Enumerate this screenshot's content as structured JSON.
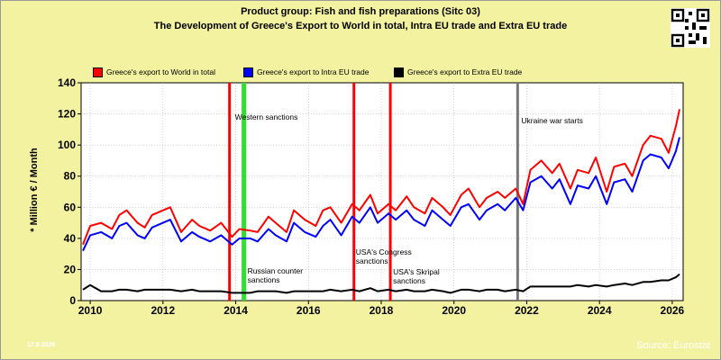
{
  "title": {
    "line1": "Product group: Fish and fish preparations (Sitc 03)",
    "line2": "The Development of Greece's Export to World in total, Intra EU trade and Extra EU trade"
  },
  "legend": [
    {
      "label": "Greece's export to World in total",
      "color": "#ff0000"
    },
    {
      "label": "Greece's export to Intra EU trade",
      "color": "#0000ff"
    },
    {
      "label": "Greece's export to Extra EU trade",
      "color": "#000000"
    }
  ],
  "footer": {
    "source": "Source: Eurostat",
    "date": "17.8.2026"
  },
  "chart_data": {
    "type": "line",
    "ylabel": "* Million € / Month",
    "xlabel": "",
    "xlim": [
      2009.75,
      2026.3
    ],
    "ylim": [
      0,
      140
    ],
    "yticks": [
      0,
      20,
      40,
      60,
      80,
      100,
      120,
      140
    ],
    "xticks": [
      2010,
      2012,
      2014,
      2016,
      2018,
      2020,
      2022,
      2024,
      2026
    ],
    "grid": true,
    "legend_position": "top",
    "series_anchor_x": [
      2009.8,
      2010.0,
      2010.3,
      2010.6,
      2010.8,
      2011.0,
      2011.3,
      2011.5,
      2011.7,
      2012.0,
      2012.2,
      2012.5,
      2012.8,
      2013.0,
      2013.3,
      2013.6,
      2013.9,
      2014.1,
      2014.4,
      2014.6,
      2014.9,
      2015.1,
      2015.4,
      2015.6,
      2015.9,
      2016.2,
      2016.4,
      2016.6,
      2016.9,
      2017.2,
      2017.4,
      2017.7,
      2017.9,
      2018.2,
      2018.4,
      2018.7,
      2018.9,
      2019.2,
      2019.4,
      2019.7,
      2019.9,
      2020.2,
      2020.4,
      2020.7,
      2020.9,
      2021.2,
      2021.4,
      2021.7,
      2021.9,
      2022.1,
      2022.4,
      2022.7,
      2022.9,
      2023.2,
      2023.4,
      2023.7,
      2023.9,
      2024.2,
      2024.4,
      2024.7,
      2024.9,
      2025.2,
      2025.4,
      2025.7,
      2025.9,
      2026.1,
      2026.2
    ],
    "series": [
      {
        "name": "Greece's export to World in total",
        "color": "#ff0000",
        "values": [
          36,
          48,
          50,
          46,
          55,
          58,
          50,
          47,
          55,
          58,
          60,
          44,
          52,
          48,
          45,
          50,
          41,
          46,
          45,
          44,
          54,
          50,
          44,
          58,
          52,
          48,
          58,
          60,
          50,
          62,
          58,
          68,
          56,
          62,
          58,
          67,
          60,
          56,
          66,
          60,
          55,
          68,
          72,
          60,
          66,
          70,
          66,
          72,
          62,
          84,
          90,
          82,
          88,
          72,
          84,
          82,
          92,
          70,
          86,
          88,
          80,
          100,
          106,
          104,
          95,
          112,
          123
        ]
      },
      {
        "name": "Greece's export to Intra EU trade",
        "color": "#0000ff",
        "values": [
          32,
          42,
          44,
          40,
          48,
          50,
          42,
          40,
          47,
          50,
          52,
          38,
          44,
          41,
          38,
          42,
          36,
          40,
          40,
          38,
          46,
          42,
          38,
          50,
          44,
          41,
          48,
          52,
          42,
          54,
          50,
          60,
          50,
          56,
          52,
          58,
          52,
          48,
          58,
          52,
          48,
          60,
          62,
          52,
          58,
          62,
          58,
          66,
          58,
          76,
          80,
          72,
          78,
          62,
          74,
          72,
          80,
          62,
          76,
          78,
          70,
          90,
          94,
          92,
          85,
          96,
          105
        ]
      },
      {
        "name": "Greece's export to Extra EU trade",
        "color": "#000000",
        "values": [
          7,
          10,
          6,
          6,
          7,
          7,
          6,
          7,
          7,
          7,
          7,
          6,
          7,
          6,
          6,
          6,
          5,
          5,
          5,
          6,
          6,
          6,
          5,
          6,
          6,
          6,
          6,
          7,
          6,
          7,
          6,
          8,
          6,
          7,
          6,
          7,
          6,
          6,
          7,
          6,
          5,
          7,
          7,
          6,
          7,
          7,
          6,
          7,
          6,
          9,
          9,
          9,
          9,
          9,
          10,
          9,
          10,
          9,
          10,
          11,
          10,
          12,
          12,
          13,
          13,
          15,
          17
        ]
      }
    ],
    "events": [
      {
        "x": 2013.83,
        "color": "#ff0000",
        "label": ""
      },
      {
        "x": 2014.2,
        "color": "#33dd33",
        "label": "Western sanctions"
      },
      {
        "x": 2014.25,
        "color": "#33dd33",
        "label": "Russian counter sanctions"
      },
      {
        "x": 2017.25,
        "color": "#ff0000",
        "label": "USA's Congress sanctions"
      },
      {
        "x": 2018.25,
        "color": "#ff0000",
        "label": "USA's Skripal sanctions"
      },
      {
        "x": 2021.75,
        "color": "#777777",
        "label": "Ukraine war starts"
      }
    ]
  }
}
